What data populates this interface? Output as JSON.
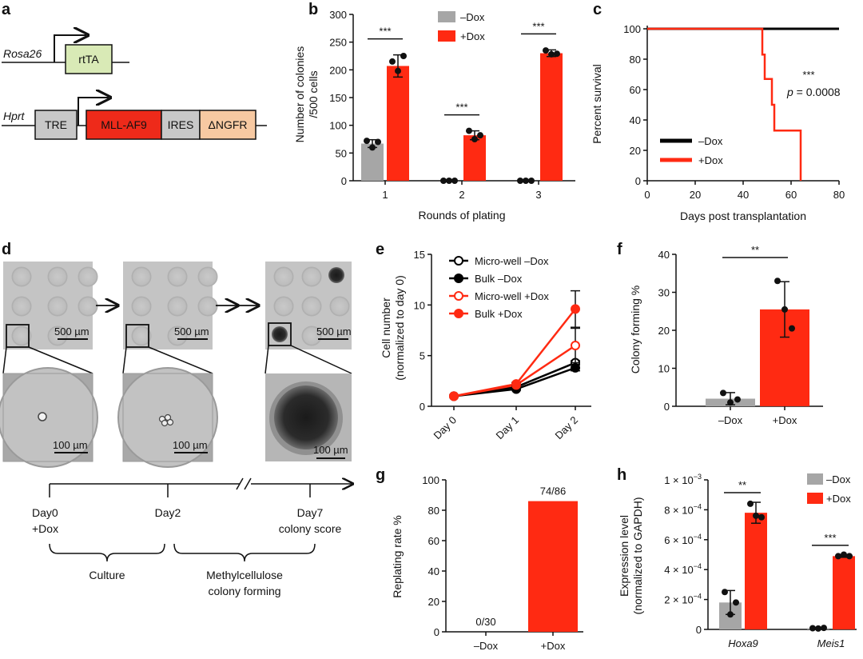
{
  "panels": {
    "a": {
      "label": "a",
      "rosa_locus": "Rosa26",
      "rosa_gene": "rtTA",
      "hprt_locus": "Hprt",
      "tre": "TRE",
      "mll": "MLL-AF9",
      "ires": "IRES",
      "ngfr": "ΔNGFR",
      "colors": {
        "rtta": "#d9eab6",
        "tre": "#c8c8c8",
        "mll": "#ee2a1a",
        "ires": "#c8c8c8",
        "ngfr": "#f7c9a2"
      }
    },
    "b": {
      "label": "b"
    },
    "c": {
      "label": "c"
    },
    "d": {
      "label": "d",
      "scale_top": "500 µm",
      "scale_bottom": "100 µm",
      "timeline": {
        "day0": "Day0",
        "day0_sub": "+Dox",
        "day2": "Day2",
        "day7": "Day7",
        "day7_sub": "colony score",
        "culture": "Culture",
        "methyl_1": "Methylcellulose",
        "methyl_2": "colony forming"
      }
    },
    "e": {
      "label": "e"
    },
    "f": {
      "label": "f"
    },
    "g": {
      "label": "g"
    },
    "h": {
      "label": "h"
    }
  },
  "chart_data": [
    {
      "id": "b",
      "type": "bar",
      "categories": [
        "1",
        "2",
        "3"
      ],
      "xlabel": "Rounds of plating",
      "ylabel_1": "Number of colonies",
      "ylabel_2": "/500 cells",
      "ylim": [
        0,
        300
      ],
      "yticks": [
        "0",
        "50",
        "100",
        "150",
        "200",
        "250",
        "300"
      ],
      "series": [
        {
          "name": "–Dox",
          "color": "#a6a6a6",
          "values": [
            67,
            0,
            0
          ],
          "err": [
            7,
            0,
            0
          ],
          "points": [
            [
              72,
              60,
              70
            ],
            [
              0,
              0,
              0
            ],
            [
              0,
              0,
              0
            ]
          ]
        },
        {
          "name": "+Dox",
          "color": "#ff2a12",
          "values": [
            207,
            82,
            230
          ],
          "err": [
            20,
            8,
            6
          ],
          "points": [
            [
              215,
              198,
              225
            ],
            [
              90,
              75,
              82
            ],
            [
              235,
              228,
              229
            ]
          ]
        }
      ],
      "significance": [
        "***",
        "***",
        "***"
      ]
    },
    {
      "id": "c",
      "type": "line",
      "xlabel": "Days post transplantation",
      "ylabel": "Percent survival",
      "xlim": [
        0,
        80
      ],
      "ylim": [
        0,
        100
      ],
      "xticks": [
        "0",
        "20",
        "40",
        "60",
        "80"
      ],
      "yticks": [
        "0",
        "20",
        "40",
        "60",
        "80",
        "100"
      ],
      "series": [
        {
          "name": "–Dox",
          "color": "#000000",
          "x": [
            0,
            80
          ],
          "y": [
            100,
            100
          ]
        },
        {
          "name": "+Dox",
          "color": "#ff2a12",
          "x": [
            0,
            48,
            48,
            49,
            49,
            50,
            50,
            52,
            52,
            53,
            53,
            64,
            64
          ],
          "y": [
            100,
            100,
            83,
            83,
            67,
            67,
            67,
            67,
            50,
            50,
            33,
            33,
            0
          ]
        }
      ],
      "annotation": "***",
      "pvalue_p": "p",
      "pvalue_rest": " = 0.0008"
    },
    {
      "id": "e",
      "type": "line",
      "categories": [
        "Day 0",
        "Day 1",
        "Day 2"
      ],
      "ylabel_1": "Cell number",
      "ylabel_2": "(normalized to day 0)",
      "ylim": [
        0,
        15
      ],
      "yticks": [
        "0",
        "5",
        "10",
        "15"
      ],
      "series": [
        {
          "name": "Micro-well –Dox",
          "color": "#000000",
          "filled": false,
          "values": [
            1,
            1.9,
            4.3
          ],
          "err": [
            0,
            0.1,
            0.2
          ]
        },
        {
          "name": "Bulk –Dox",
          "color": "#000000",
          "filled": true,
          "values": [
            1,
            1.7,
            3.8
          ],
          "err": [
            0,
            0.1,
            0.3
          ]
        },
        {
          "name": "Micro-well +Dox",
          "color": "#ff2a12",
          "filled": false,
          "values": [
            1,
            2.1,
            6.0
          ],
          "err": [
            0,
            0.15,
            1.7
          ]
        },
        {
          "name": "Bulk +Dox",
          "color": "#ff2a12",
          "filled": true,
          "values": [
            1,
            2.2,
            9.6
          ],
          "err": [
            0,
            0.15,
            1.8
          ]
        }
      ]
    },
    {
      "id": "f",
      "type": "bar",
      "categories": [
        "–Dox",
        "+Dox"
      ],
      "ylabel": "Colony forming %",
      "ylim": [
        0,
        40
      ],
      "yticks": [
        "0",
        "10",
        "20",
        "30",
        "40"
      ],
      "values": [
        2.0,
        25.5
      ],
      "err": [
        1.6,
        7.3
      ],
      "colors": [
        "#a6a6a6",
        "#ff2a12"
      ],
      "points": [
        [
          3.5,
          1.0,
          1.8
        ],
        [
          33.0,
          25.5,
          20.5
        ]
      ],
      "significance": "**"
    },
    {
      "id": "g",
      "type": "bar",
      "categories": [
        "–Dox",
        "+Dox"
      ],
      "ylabel": "Replating rate %",
      "ylim": [
        0,
        100
      ],
      "yticks": [
        "0",
        "20",
        "40",
        "60",
        "80",
        "100"
      ],
      "values": [
        0,
        86
      ],
      "colors": [
        "#a6a6a6",
        "#ff2a12"
      ],
      "data_labels": [
        "0/30",
        "74/86"
      ]
    },
    {
      "id": "h",
      "type": "bar",
      "categories": [
        "Hoxa9",
        "Meis1"
      ],
      "ylabel_1": "Expression level",
      "ylabel_2": "(normalized to GAPDH)",
      "ylim": [
        0,
        0.001
      ],
      "ytick_values": [
        0,
        0.0002,
        0.0004,
        0.0006,
        0.0008,
        0.001
      ],
      "ytick_bases": [
        "0",
        "2 × 10",
        "4 × 10",
        "6 × 10",
        "8 × 10",
        "1 × 10"
      ],
      "ytick_exps": [
        "",
        "−4",
        "−4",
        "−4",
        "−4",
        "−3"
      ],
      "series": [
        {
          "name": "–Dox",
          "color": "#a6a6a6",
          "values": [
            0.00018,
            8e-06
          ],
          "err": [
            8e-05,
            2e-06
          ],
          "points": [
            [
              0.00025,
              0.0001,
              0.00018
            ],
            [
              8e-06,
              6e-06,
              1e-05
            ]
          ]
        },
        {
          "name": "+Dox",
          "color": "#ff2a12",
          "values": [
            0.00078,
            0.00049
          ],
          "err": [
            7e-05,
            8e-06
          ],
          "points": [
            [
              0.00084,
              0.00076,
              0.00075
            ],
            [
              0.00049,
              0.0005,
              0.00049
            ]
          ]
        }
      ],
      "significance": [
        "**",
        "***"
      ]
    }
  ]
}
